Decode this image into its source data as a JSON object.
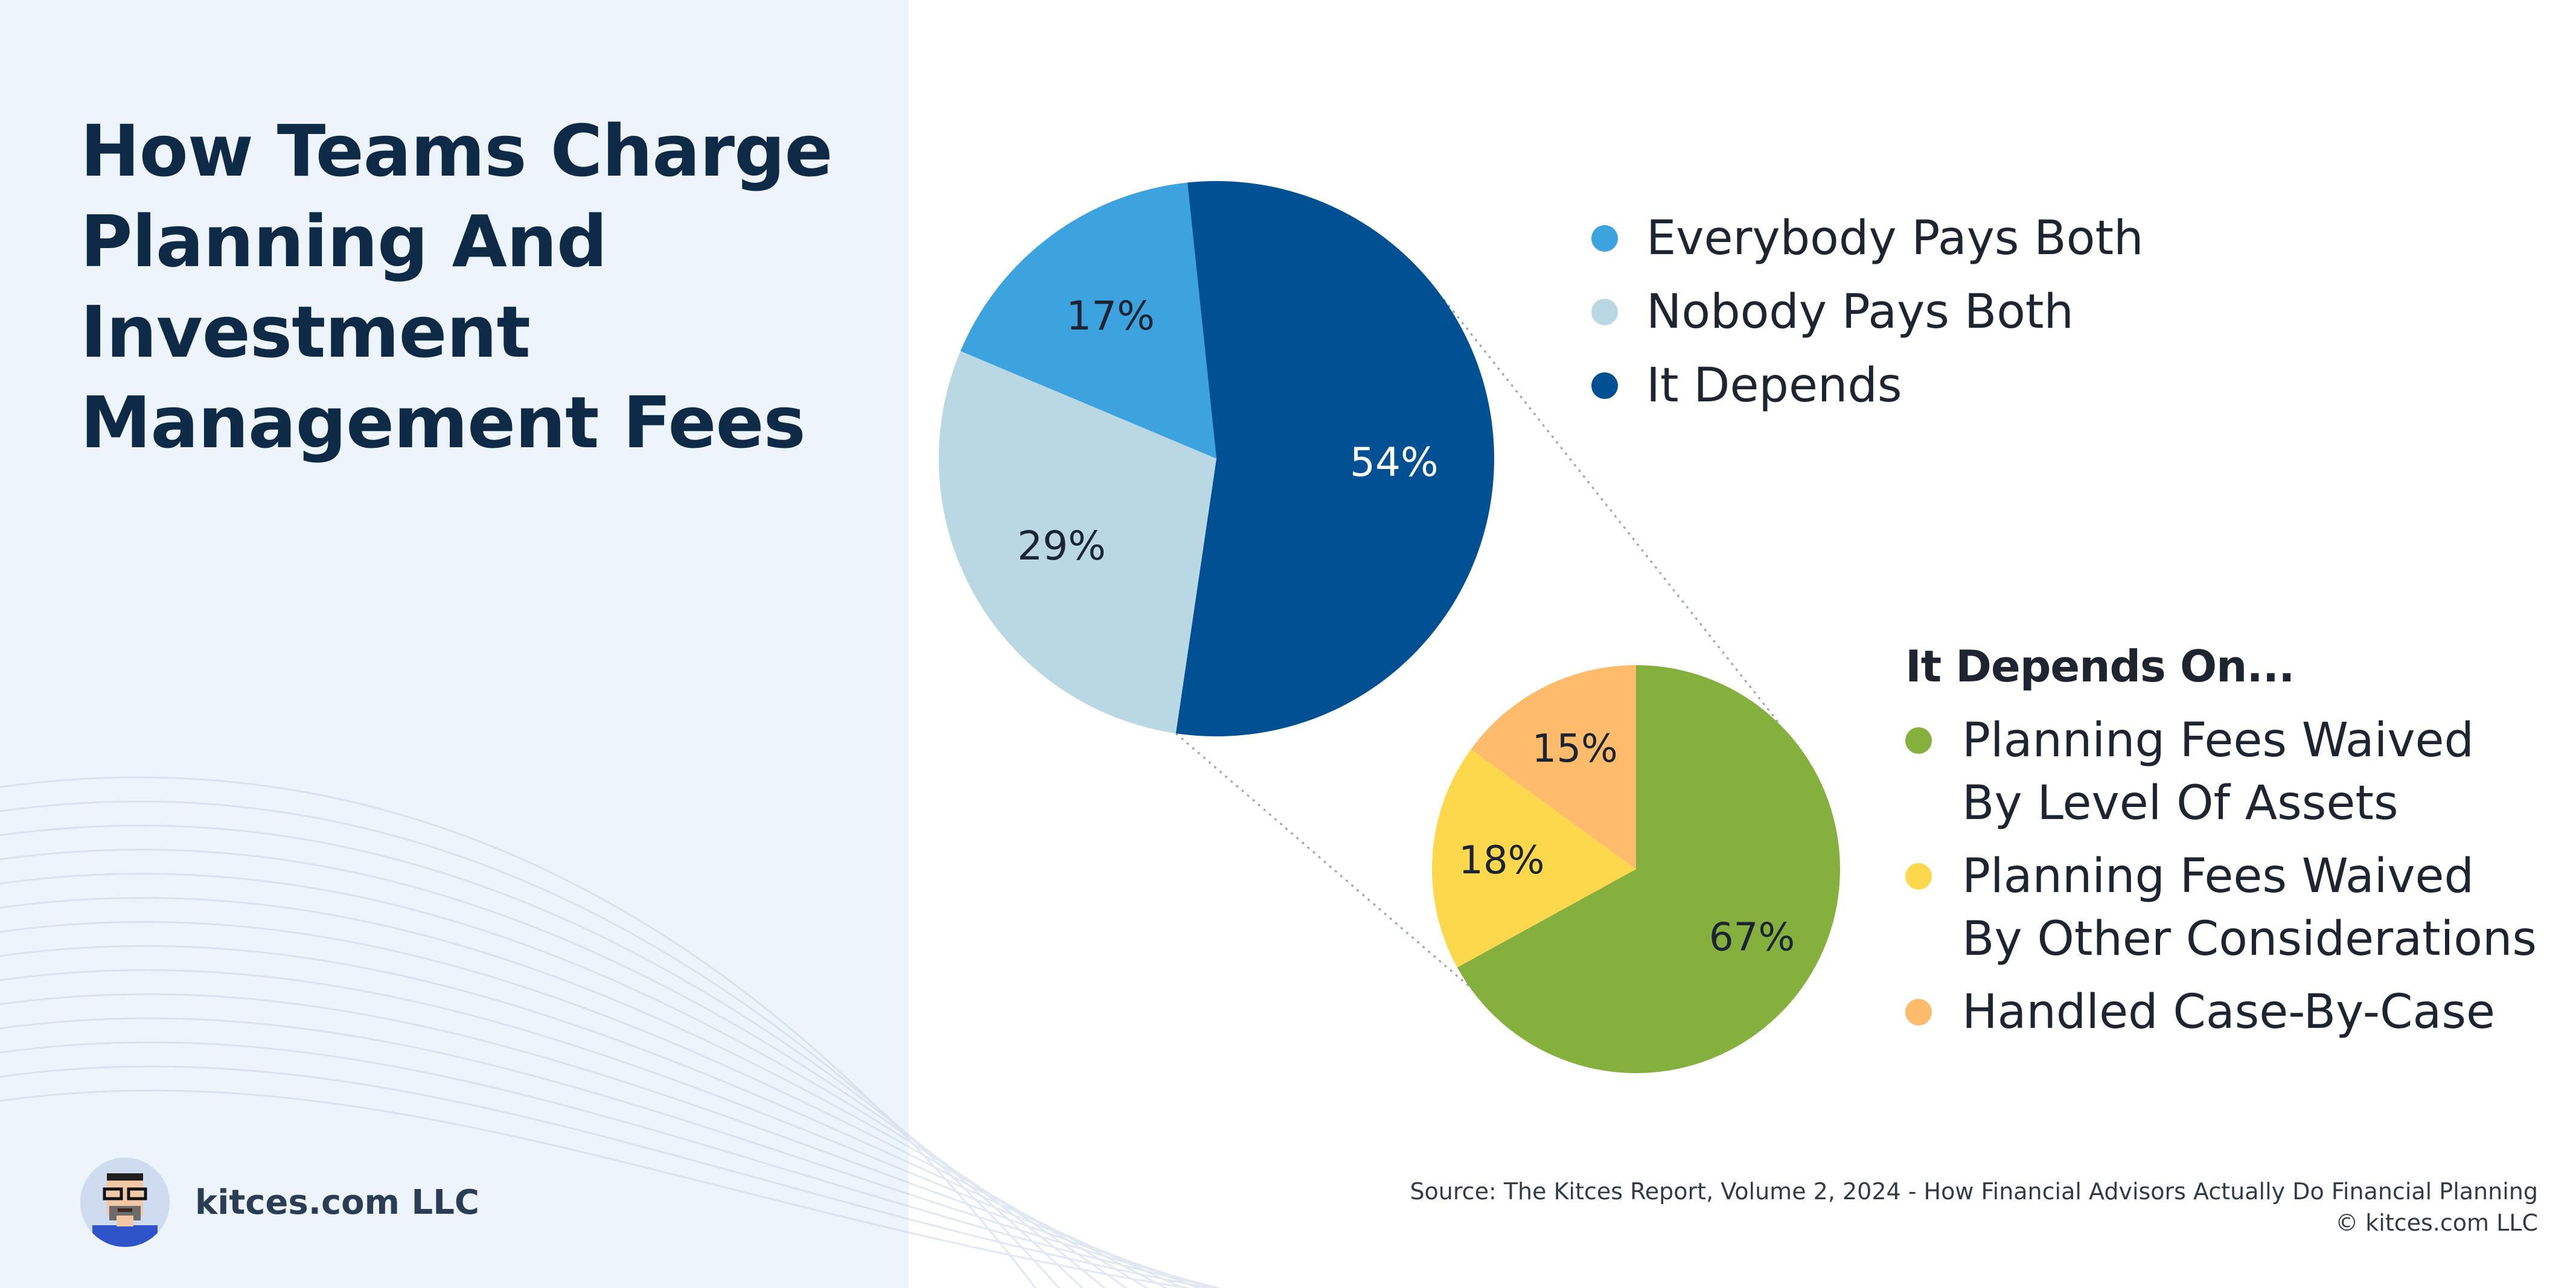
{
  "title": "How Teams Charge Planning And Investment Management Fees",
  "brand": {
    "name": "kitces.com LLC",
    "avatar_icon": "pixel-art-portrait-icon"
  },
  "source": {
    "line1": "Source: The Kitces Report, Volume 2, 2024 - How Financial Advisors Actually Do Financial Planning",
    "line2": "© kitces.com LLC"
  },
  "colors": {
    "left_panel_bg": "#edf4fb",
    "title": "#0e2a47",
    "everybody": "#3da3de",
    "nobody": "#bad8e4",
    "depends": "#005093",
    "assets": "#86b03e",
    "other": "#fdd84d",
    "case": "#fdbb6b"
  },
  "chart_data": [
    {
      "type": "pie",
      "title": "",
      "slices": [
        {
          "label": "Everybody Pays Both",
          "value": 17,
          "value_label": "17%",
          "color": "#3da3de",
          "label_color": "#1a2433"
        },
        {
          "label": "Nobody Pays Both",
          "value": 29,
          "value_label": "29%",
          "color": "#bad8e4",
          "label_color": "#1a2433"
        },
        {
          "label": "It Depends",
          "value": 54,
          "value_label": "54%",
          "color": "#005093",
          "label_color": "#ffffff"
        }
      ],
      "legend_placement": "right"
    },
    {
      "type": "pie",
      "title": "It Depends On...",
      "slices": [
        {
          "label": "Planning Fees Waived\nBy Level Of Assets",
          "value": 67,
          "value_label": "67%",
          "color": "#86b03e",
          "label_color": "#1a2433"
        },
        {
          "label": "Planning Fees Waived\nBy Other Considerations",
          "value": 18,
          "value_label": "18%",
          "color": "#fdd84d",
          "label_color": "#1a2433"
        },
        {
          "label": "Handled Case-By-Case",
          "value": 15,
          "value_label": "15%",
          "color": "#fdbb6b",
          "label_color": "#1a2433"
        }
      ],
      "legend_placement": "right"
    }
  ]
}
